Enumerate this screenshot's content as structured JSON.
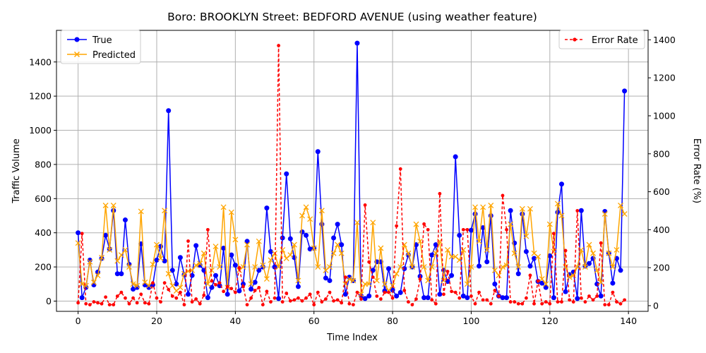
{
  "chart_data": {
    "type": "line",
    "title": "Boro: BROOKLYN Street: BEDFORD AVENUE (using weather feature)",
    "xlabel": "Time Index",
    "ylabel": "Traffic Volume",
    "y2label": "Error Rate (%)",
    "xlim": [
      -5.5,
      145
    ],
    "ylim": [
      -60,
      1585
    ],
    "y2lim": [
      -30,
      1450
    ],
    "xticks": [
      0,
      20,
      40,
      60,
      80,
      100,
      120,
      140
    ],
    "yticks": [
      0,
      200,
      400,
      600,
      800,
      1000,
      1200,
      1400
    ],
    "y2ticks": [
      0,
      200,
      400,
      600,
      800,
      1000,
      1200,
      1400
    ],
    "grid": true,
    "legend_left": "upper-left",
    "legend_right": "upper-right",
    "colors": {
      "true": "#0000ff",
      "predicted": "#ffa500",
      "error": "#ff0000"
    },
    "series": [
      {
        "name": "True",
        "axis": "left",
        "style": "solid-circle",
        "values": [
          400,
          20,
          80,
          240,
          95,
          170,
          250,
          385,
          305,
          530,
          160,
          160,
          475,
          215,
          70,
          80,
          335,
          95,
          80,
          95,
          240,
          320,
          235,
          1115,
          180,
          100,
          255,
          155,
          40,
          150,
          325,
          210,
          180,
          20,
          80,
          150,
          90,
          310,
          40,
          270,
          210,
          60,
          100,
          350,
          70,
          110,
          180,
          200,
          545,
          290,
          200,
          15,
          370,
          745,
          365,
          255,
          85,
          405,
          385,
          305,
          310,
          875,
          450,
          135,
          120,
          370,
          450,
          330,
          40,
          140,
          120,
          1510,
          30,
          15,
          30,
          180,
          230,
          230,
          60,
          190,
          65,
          30,
          50,
          190,
          270,
          200,
          330,
          145,
          20,
          20,
          270,
          330,
          40,
          180,
          115,
          150,
          845,
          385,
          30,
          20,
          415,
          510,
          205,
          430,
          230,
          500,
          100,
          30,
          20,
          20,
          530,
          340,
          160,
          510,
          290,
          205,
          250,
          115,
          105,
          80,
          265,
          20,
          520,
          685,
          55,
          155,
          170,
          15,
          530,
          205,
          220,
          250,
          100,
          30,
          525,
          280,
          105,
          250,
          180,
          1230
        ]
      },
      {
        "name": "Predicted",
        "axis": "left",
        "style": "solid-x",
        "values": [
          340,
          100,
          90,
          230,
          110,
          150,
          255,
          560,
          300,
          560,
          235,
          270,
          300,
          200,
          100,
          90,
          525,
          110,
          90,
          215,
          330,
          250,
          530,
          160,
          90,
          60,
          80,
          160,
          175,
          180,
          210,
          220,
          280,
          100,
          180,
          320,
          200,
          550,
          80,
          520,
          360,
          180,
          200,
          330,
          100,
          200,
          350,
          210,
          130,
          240,
          280,
          200,
          300,
          250,
          270,
          330,
          120,
          500,
          550,
          480,
          310,
          200,
          530,
          180,
          200,
          280,
          330,
          280,
          100,
          130,
          120,
          460,
          40,
          100,
          100,
          460,
          120,
          310,
          100,
          60,
          90,
          160,
          200,
          330,
          280,
          200,
          450,
          350,
          200,
          120,
          200,
          280,
          350,
          120,
          300,
          260,
          260,
          240,
          300,
          100,
          200,
          550,
          350,
          550,
          300,
          560,
          180,
          150,
          200,
          210,
          450,
          280,
          200,
          540,
          380,
          540,
          280,
          260,
          130,
          100,
          450,
          290,
          570,
          500,
          200,
          140,
          150,
          200,
          300,
          200,
          330,
          280,
          180,
          110,
          510,
          280,
          200,
          300,
          560,
          510
        ]
      },
      {
        "name": "Error Rate",
        "axis": "right",
        "style": "dashed-dot",
        "values": [
          15,
          380,
          10,
          5,
          20,
          15,
          10,
          45,
          5,
          5,
          50,
          70,
          40,
          10,
          40,
          15,
          60,
          15,
          10,
          120,
          40,
          20,
          120,
          85,
          50,
          40,
          70,
          5,
          340,
          20,
          35,
          10,
          55,
          400,
          130,
          110,
          120,
          75,
          100,
          90,
          70,
          200,
          100,
          5,
          40,
          80,
          95,
          5,
          75,
          20,
          40,
          1370,
          20,
          65,
          25,
          30,
          40,
          25,
          40,
          60,
          5,
          70,
          20,
          35,
          70,
          25,
          30,
          15,
          150,
          10,
          5,
          70,
          35,
          530,
          230,
          150,
          50,
          35,
          70,
          70,
          40,
          420,
          720,
          80,
          20,
          5,
          35,
          140,
          430,
          400,
          30,
          10,
          590,
          60,
          180,
          75,
          70,
          40,
          400,
          400,
          50,
          10,
          70,
          30,
          30,
          10,
          80,
          50,
          580,
          400,
          20,
          20,
          10,
          10,
          40,
          160,
          10,
          130,
          10,
          20,
          10,
          380,
          20,
          20,
          290,
          30,
          20,
          500,
          40,
          20,
          50,
          30,
          50,
          330,
          5,
          5,
          70,
          20,
          10,
          30
        ]
      }
    ]
  }
}
